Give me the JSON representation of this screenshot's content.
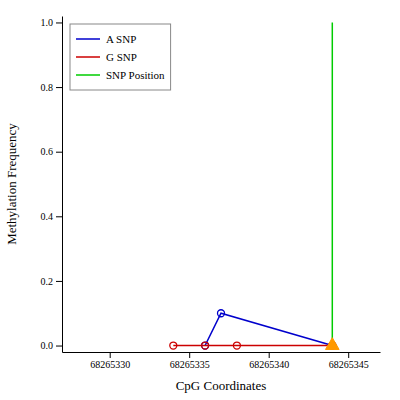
{
  "chart_data": {
    "type": "line",
    "x_label": "CpG Coordinates",
    "y_label": "Methylation Frequency",
    "series": [
      {
        "name": "A SNP",
        "color": "#0000cc",
        "marker": "circle",
        "x": [
          68265336,
          68265337,
          68265344
        ],
        "values": [
          0.0,
          0.1,
          0.0
        ]
      },
      {
        "name": "G SNP",
        "color": "#cc0000",
        "marker": "circle",
        "x": [
          68265334,
          68265336,
          68265338,
          68265344
        ],
        "values": [
          0.0,
          0.0,
          0.0,
          0.0
        ]
      },
      {
        "name": "SNP Position",
        "color": "#00cc00",
        "x": [
          68265344,
          68265344
        ],
        "values": [
          0,
          1
        ]
      },
      {
        "type": "scatter",
        "color": "#ff9900",
        "marker": "triangle",
        "x": [
          68265344
        ],
        "values": [
          0.0
        ]
      }
    ],
    "xlim": [
      68265327,
      68265347
    ],
    "ylim": [
      -0.02,
      1.02
    ],
    "xticks": [
      68265330,
      68265335,
      68265340,
      68265345
    ],
    "yticks": [
      {
        "value": 0,
        "label": "0.0"
      },
      0.2,
      0.4,
      0.6,
      0.8,
      {
        "value": 1,
        "label": "1.0"
      }
    ],
    "grid": false,
    "legend": "upper left"
  }
}
